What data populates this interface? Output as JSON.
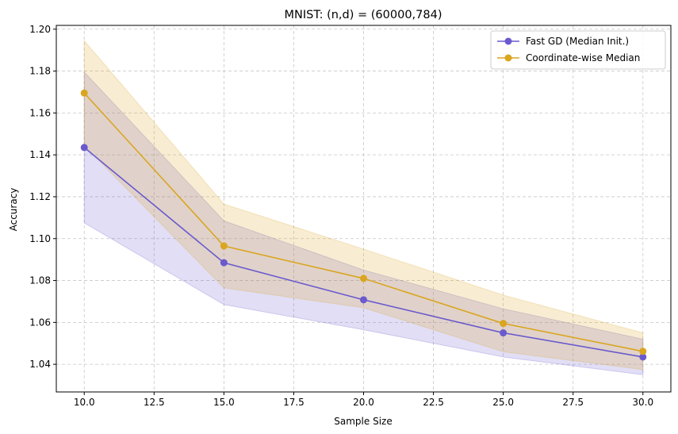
{
  "chart_data": {
    "type": "line",
    "title": "MNIST: (n,d) = (60000,784)",
    "xlabel": "Sample Size",
    "ylabel": "Accuracy",
    "xlim": [
      9.0,
      31.0
    ],
    "ylim": [
      1.0268,
      1.2018
    ],
    "xticks": [
      10.0,
      12.5,
      15.0,
      17.5,
      20.0,
      22.5,
      25.0,
      27.5,
      30.0
    ],
    "xtick_labels": [
      "10.0",
      "12.5",
      "15.0",
      "17.5",
      "20.0",
      "22.5",
      "25.0",
      "27.5",
      "30.0"
    ],
    "yticks": [
      1.04,
      1.06,
      1.08,
      1.1,
      1.12,
      1.14,
      1.16,
      1.18,
      1.2
    ],
    "ytick_labels": [
      "1.04",
      "1.06",
      "1.08",
      "1.10",
      "1.12",
      "1.14",
      "1.16",
      "1.18",
      "1.20"
    ],
    "grid": true,
    "legend_position": "top-right",
    "x": [
      10,
      15,
      20,
      25,
      30
    ],
    "series": [
      {
        "name": "Fast GD (Median Init.)",
        "color": "#6a5acd",
        "values": [
          1.1435,
          1.0885,
          1.0708,
          1.055,
          1.0435
        ],
        "lower": [
          1.1075,
          1.0685,
          1.0565,
          1.0435,
          1.035
        ],
        "upper": [
          1.1795,
          1.1085,
          1.085,
          1.0665,
          1.052
        ]
      },
      {
        "name": "Coordinate-wise Median",
        "color": "#daa520",
        "values": [
          1.1695,
          1.0965,
          1.081,
          1.0595,
          1.0462
        ],
        "lower": [
          1.1445,
          1.0765,
          1.067,
          1.046,
          1.0375
        ],
        "upper": [
          1.1945,
          1.1165,
          1.095,
          1.073,
          1.055
        ]
      }
    ]
  }
}
